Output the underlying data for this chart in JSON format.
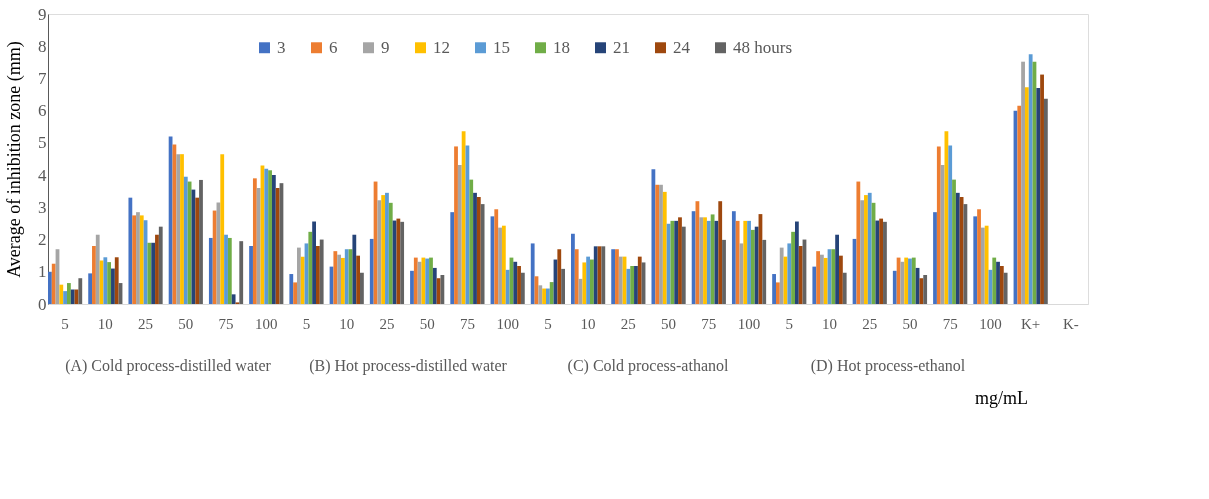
{
  "chart_data": {
    "type": "bar",
    "ylabel": "Average of inhibition zone (mm)",
    "xlabel": "mg/mL",
    "categories": [
      "5",
      "10",
      "25",
      "50",
      "75",
      "100",
      "5",
      "10",
      "25",
      "50",
      "75",
      "100",
      "5",
      "10",
      "25",
      "50",
      "75",
      "100",
      "5",
      "10",
      "25",
      "50",
      "75",
      "100",
      "K+",
      "K-"
    ],
    "annotations": [
      "(A) Cold process-distilled water",
      "(B) Hot process-distilled water",
      "(C) Cold process-athanol",
      "(D) Hot process-ethanol"
    ],
    "ylim": [
      0,
      9
    ],
    "yticks": [
      0,
      1,
      2,
      3,
      4,
      5,
      6,
      7,
      8,
      9
    ],
    "grid": false,
    "legend": "top",
    "series": [
      {
        "name": "3",
        "color": "#4472c4",
        "values": [
          1.0,
          0.95,
          3.3,
          5.2,
          2.05,
          1.8,
          0.93,
          1.16,
          2.02,
          1.03,
          2.85,
          2.72,
          1.88,
          2.18,
          1.7,
          4.18,
          2.88,
          2.88,
          0.93,
          1.16,
          2.02,
          1.03,
          2.85,
          2.72,
          6.0,
          null
        ]
      },
      {
        "name": "6",
        "color": "#ed7d31",
        "values": [
          1.25,
          1.8,
          2.75,
          4.95,
          2.9,
          3.9,
          0.67,
          1.64,
          3.8,
          1.44,
          4.89,
          2.94,
          0.86,
          1.7,
          1.7,
          3.7,
          3.19,
          2.58,
          0.67,
          1.64,
          3.8,
          1.44,
          4.89,
          2.94,
          6.15,
          null
        ]
      },
      {
        "name": "9",
        "color": "#a5a5a5",
        "values": [
          1.7,
          2.15,
          2.85,
          4.65,
          3.15,
          3.6,
          1.75,
          1.53,
          3.22,
          1.31,
          4.31,
          2.37,
          0.58,
          0.78,
          1.47,
          3.7,
          2.69,
          1.88,
          1.75,
          1.53,
          3.22,
          1.31,
          4.31,
          2.37,
          7.52,
          null
        ]
      },
      {
        "name": "12",
        "color": "#ffc000",
        "values": [
          0.6,
          1.35,
          2.75,
          4.65,
          4.65,
          4.3,
          1.47,
          1.43,
          3.38,
          1.44,
          5.36,
          2.43,
          0.48,
          1.29,
          1.47,
          3.48,
          2.69,
          2.58,
          1.47,
          1.43,
          3.38,
          1.44,
          5.36,
          2.43,
          6.73,
          null
        ]
      },
      {
        "name": "15",
        "color": "#5b9bd5",
        "values": [
          0.4,
          1.45,
          2.6,
          3.95,
          2.15,
          4.2,
          1.88,
          1.7,
          3.45,
          1.41,
          4.92,
          1.06,
          0.48,
          1.47,
          1.09,
          2.49,
          2.58,
          2.58,
          1.88,
          1.7,
          3.45,
          1.41,
          4.92,
          1.06,
          7.75,
          null
        ]
      },
      {
        "name": "18",
        "color": "#70ad47",
        "values": [
          0.65,
          1.3,
          1.9,
          3.8,
          2.05,
          4.15,
          2.24,
          1.7,
          3.14,
          1.44,
          3.86,
          1.44,
          0.68,
          1.38,
          1.18,
          2.58,
          2.78,
          2.3,
          2.24,
          1.7,
          3.14,
          1.44,
          3.86,
          1.44,
          7.52,
          null
        ]
      },
      {
        "name": "21",
        "color": "#264478",
        "values": [
          0.45,
          1.1,
          1.9,
          3.55,
          0.3,
          4.0,
          2.56,
          2.15,
          2.59,
          1.12,
          3.45,
          1.31,
          1.38,
          1.79,
          1.18,
          2.58,
          2.58,
          2.4,
          2.56,
          2.15,
          2.59,
          1.12,
          3.45,
          1.31,
          6.7,
          null
        ]
      },
      {
        "name": "24",
        "color": "#9e480e",
        "values": [
          0.45,
          1.45,
          2.15,
          3.3,
          0.05,
          3.6,
          1.8,
          1.5,
          2.65,
          0.8,
          3.32,
          1.18,
          1.7,
          1.79,
          1.47,
          2.69,
          3.19,
          2.79,
          1.8,
          1.5,
          2.65,
          0.8,
          3.32,
          1.18,
          7.12,
          null
        ]
      },
      {
        "name": "48 hours",
        "color": "#636363",
        "values": [
          0.8,
          0.65,
          2.4,
          3.85,
          1.95,
          3.75,
          2.0,
          0.97,
          2.55,
          0.9,
          3.1,
          0.97,
          1.09,
          1.79,
          1.29,
          2.4,
          1.99,
          1.99,
          2.0,
          0.97,
          2.55,
          0.9,
          3.1,
          0.97,
          6.37,
          null
        ]
      }
    ]
  }
}
